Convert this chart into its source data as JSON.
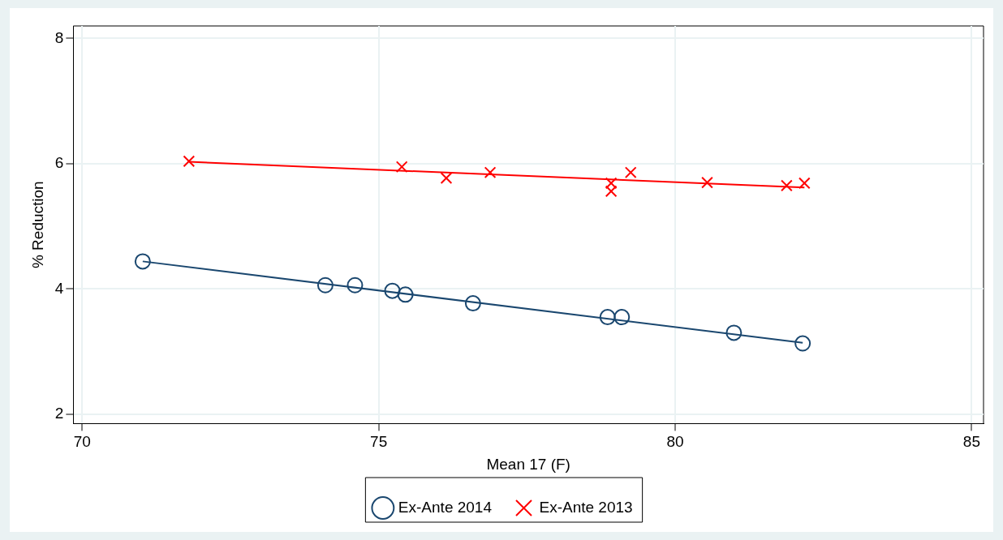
{
  "chart_data": {
    "type": "scatter",
    "xlabel": "Mean 17 (F)",
    "ylabel": "% Reduction",
    "xlim": [
      69.85,
      85.2
    ],
    "ylim": [
      1.85,
      8.2
    ],
    "xticks": [
      70,
      75,
      80,
      85
    ],
    "yticks": [
      2,
      4,
      6,
      8
    ],
    "grid": true,
    "legend": "bottom",
    "series": [
      {
        "name": "Ex-Ante 2014",
        "color": "#1a476f",
        "marker": "circle",
        "x": [
          71.02,
          74.1,
          74.6,
          75.23,
          75.45,
          76.59,
          78.86,
          79.1,
          80.99,
          82.15
        ],
        "values": [
          4.44,
          4.06,
          4.06,
          3.97,
          3.91,
          3.77,
          3.55,
          3.55,
          3.3,
          3.13
        ]
      },
      {
        "name": "Ex-Ante 2013",
        "color": "#ff0000",
        "marker": "cross",
        "x": [
          71.8,
          75.39,
          76.14,
          76.88,
          78.92,
          78.92,
          79.25,
          80.54,
          81.88,
          82.18
        ],
        "values": [
          6.04,
          5.95,
          5.77,
          5.86,
          5.69,
          5.56,
          5.86,
          5.7,
          5.65,
          5.69
        ]
      },
      {
        "type": "line",
        "color": "#1a476f",
        "marker": "none",
        "x": [
          71.02,
          82.15
        ],
        "values": [
          4.44,
          3.14
        ]
      },
      {
        "type": "line",
        "color": "#ff0000",
        "marker": "none",
        "x": [
          71.8,
          82.18
        ],
        "values": [
          6.03,
          5.62
        ]
      }
    ]
  }
}
